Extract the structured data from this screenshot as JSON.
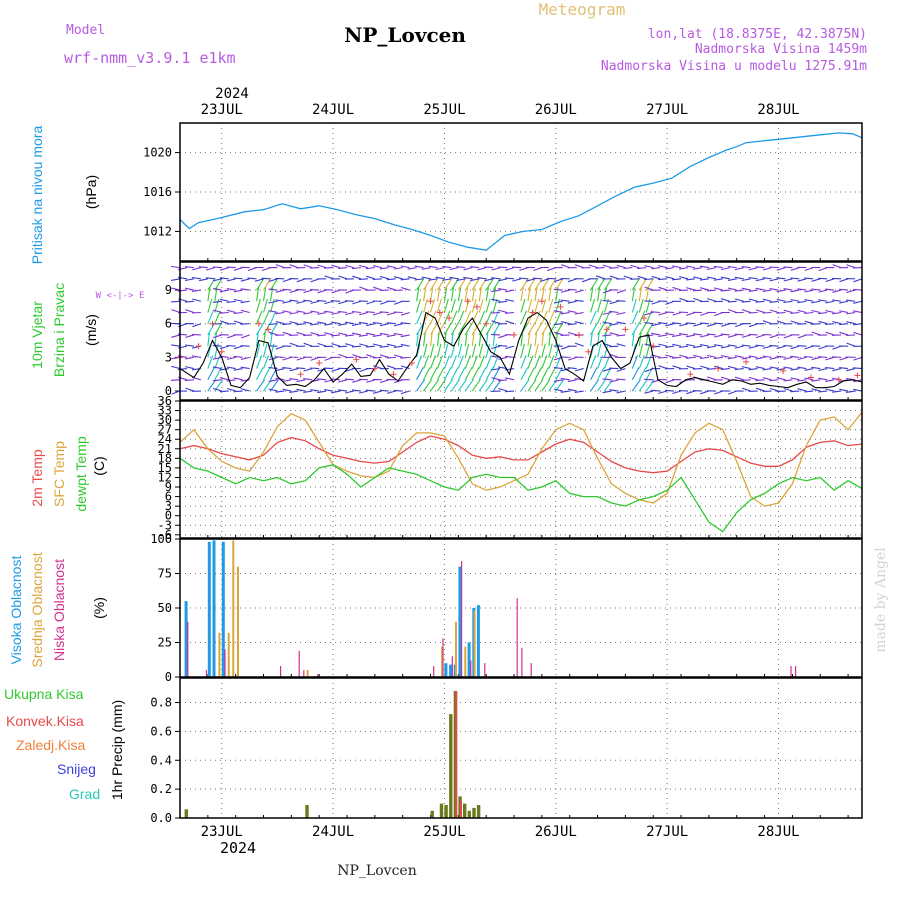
{
  "header": {
    "model_label": "Model",
    "model_name": "wrf-nmm_v3.9.1 e1km",
    "station": "NP_Lovcen",
    "meteogram_label": "Meteogram",
    "lonlat": "lon,lat (18.8375E, 42.3875N)",
    "elevation": "Nadmorska Visina 1459m",
    "model_elevation": "Nadmorska Visina u modelu 1275.91m",
    "watermark": "made by Angel",
    "footer_station": "NP_Lovcen"
  },
  "colors": {
    "pressure": "#1e9be6",
    "temp": "#e84848",
    "sfc_temp": "#dca53c",
    "dewpoint": "#2fc92f",
    "high_cloud": "#1e9be6",
    "mid_cloud": "#dca53c",
    "low_cloud": "#d0318f",
    "total_precip": "#2fc92f",
    "convective": "#e84848",
    "stratiform": "#f07f3a",
    "snow": "#4040dd",
    "graupel": "#2bc8b8",
    "header_purple": "#b65be0",
    "header_gold": "#e3bf75",
    "wind_speed_line": "#000000",
    "wind_gust_marker": "#e84848"
  },
  "time_axis": {
    "top_year": "2024",
    "bottom_year": "2024",
    "day_labels": [
      "23JUL",
      "24JUL",
      "25JUL",
      "26JUL",
      "27JUL",
      "28JUL"
    ],
    "start_hour": 0,
    "end_hour": 147
  },
  "panels": {
    "pressure": {
      "label_1": "Pritisak na nivou mora",
      "unit": "(hPa)"
    },
    "wind": {
      "label_1": "10m Vjetar",
      "label_2": "Brzina i Pravac",
      "unit": "(m/s)",
      "compass": "W <-|-> E"
    },
    "temp": {
      "label_1": "2m Temp",
      "label_2": "SFC Temp",
      "label_3": "dewpt Temp",
      "unit": "(C)"
    },
    "cloud": {
      "label_1": "Visoka Oblacnost",
      "label_2": "Srednja Oblacnost",
      "label_3": "Niska Oblacnost",
      "unit": "(%)"
    },
    "precip": {
      "unit": "1hr Precip (mm)",
      "legend": [
        "Ukupna Kisa",
        "Konvek.Kisa",
        "Zaledj.Kisa",
        "Snijeg",
        "Grad"
      ]
    }
  },
  "chart_data": [
    {
      "type": "line",
      "title": "Pritisak na nivou mora",
      "ylabel": "(hPa)",
      "ylim": [
        1009,
        1023
      ],
      "yticks": [
        1012,
        1016,
        1020
      ],
      "grid": true,
      "series": [
        {
          "name": "Pritisak na nivou mora",
          "x": [
            0,
            2,
            4,
            8,
            14,
            18,
            22,
            26,
            30,
            34,
            38,
            42,
            46,
            50,
            54,
            58,
            62,
            66,
            70,
            74,
            78,
            82,
            86,
            90,
            94,
            98,
            102,
            106,
            110,
            114,
            118,
            120,
            122,
            126,
            130,
            134,
            138,
            142,
            145,
            147
          ],
          "values": [
            1013.2,
            1012.3,
            1012.9,
            1013.3,
            1014.0,
            1014.2,
            1014.8,
            1014.3,
            1014.6,
            1014.2,
            1013.7,
            1013.3,
            1012.7,
            1012.2,
            1011.6,
            1010.9,
            1010.4,
            1010.1,
            1011.6,
            1012.0,
            1012.2,
            1013.0,
            1013.6,
            1014.6,
            1015.6,
            1016.5,
            1016.9,
            1017.4,
            1018.6,
            1019.5,
            1020.3,
            1020.6,
            1021.0,
            1021.2,
            1021.4,
            1021.6,
            1021.8,
            1022.0,
            1021.9,
            1021.5
          ]
        }
      ]
    },
    {
      "type": "line",
      "title": "10m Vjetar Brzina i Pravac",
      "ylabel": "(m/s)",
      "ylim": [
        -0.8,
        11.5
      ],
      "yticks": [
        0,
        3,
        6,
        9
      ],
      "grid": true,
      "series": [
        {
          "name": "Brzina",
          "x": [
            0,
            3,
            5,
            7,
            9,
            11,
            13,
            15,
            17,
            19,
            21,
            23,
            25,
            27,
            29,
            31,
            33,
            35,
            37,
            39,
            41,
            43,
            45,
            47,
            49,
            51,
            53,
            55,
            57,
            59,
            61,
            63,
            65,
            67,
            69,
            71,
            73,
            75,
            77,
            79,
            81,
            83,
            85,
            87,
            89,
            91,
            93,
            95,
            97,
            99,
            101,
            103,
            105,
            107,
            109,
            111,
            113,
            115,
            117,
            119,
            121,
            123,
            125,
            127,
            129,
            131,
            133,
            135,
            137,
            139,
            141,
            143,
            145,
            147
          ],
          "values": [
            2.0,
            1.2,
            2.5,
            4.5,
            3.0,
            0.5,
            0.3,
            1.2,
            4.5,
            4.3,
            1.3,
            0.5,
            0.6,
            0.4,
            1.0,
            2.0,
            0.8,
            1.5,
            2.4,
            1.3,
            1.4,
            2.8,
            1.5,
            0.9,
            2.1,
            3.2,
            7.0,
            6.5,
            4.5,
            4.0,
            5.5,
            6.5,
            5.0,
            3.5,
            3.0,
            1.5,
            4.5,
            6.5,
            7.0,
            6.3,
            4.5,
            2.0,
            1.5,
            0.9,
            4.0,
            4.5,
            3.0,
            2.0,
            2.5,
            4.8,
            5.0,
            1.0,
            0.5,
            0.4,
            1.0,
            1.2,
            1.0,
            0.8,
            0.6,
            1.0,
            0.9,
            0.6,
            0.7,
            0.5,
            0.4,
            0.3,
            0.6,
            0.8,
            0.3,
            0.3,
            0.4,
            0.9,
            1.0,
            0.8
          ]
        },
        {
          "name": "Udar",
          "x": [
            0,
            4,
            7,
            9,
            17,
            19,
            26,
            30,
            38,
            42,
            46,
            50,
            54,
            56,
            58,
            62,
            64,
            66,
            72,
            76,
            78,
            82,
            86,
            88,
            92,
            96,
            100,
            102,
            110,
            116,
            122,
            130,
            136,
            142,
            146
          ],
          "values": [
            3.0,
            4.0,
            6.0,
            3.5,
            6.0,
            5.5,
            1.5,
            2.5,
            2.8,
            2.0,
            1.5,
            2.5,
            8.0,
            7.0,
            6.5,
            8.0,
            7.5,
            6.0,
            5.0,
            7.0,
            8.0,
            7.5,
            5.0,
            3.5,
            5.5,
            5.5,
            6.5,
            4.0,
            1.5,
            2.0,
            2.6,
            1.8,
            1.2,
            1.0,
            1.4
          ]
        }
      ]
    },
    {
      "type": "line",
      "title": "2m Temp / SFC Temp / dewpt Temp",
      "ylabel": "(C)",
      "ylim": [
        -7,
        36
      ],
      "yticks": [
        -6,
        -3,
        0,
        3,
        6,
        9,
        12,
        15,
        18,
        21,
        24,
        27,
        30,
        33,
        36
      ],
      "grid": true,
      "series": [
        {
          "name": "2m Temp",
          "x": [
            0,
            3,
            6,
            9,
            12,
            15,
            18,
            21,
            24,
            27,
            30,
            33,
            36,
            39,
            42,
            45,
            48,
            51,
            54,
            57,
            60,
            63,
            66,
            69,
            72,
            75,
            78,
            81,
            84,
            87,
            90,
            93,
            96,
            99,
            102,
            105,
            108,
            111,
            114,
            117,
            120,
            123,
            126,
            129,
            132,
            135,
            138,
            141,
            144,
            147
          ],
          "values": [
            21.0,
            22.0,
            21.0,
            19.5,
            18.5,
            17.5,
            19.0,
            23.0,
            24.5,
            23.5,
            21.0,
            19.0,
            18.0,
            17.0,
            16.5,
            17.0,
            20.0,
            23.0,
            25.0,
            24.0,
            22.0,
            19.0,
            18.0,
            18.5,
            17.5,
            17.5,
            20.0,
            22.5,
            24.0,
            23.0,
            20.0,
            17.0,
            15.0,
            14.0,
            13.5,
            14.0,
            17.0,
            20.0,
            21.0,
            20.5,
            18.5,
            16.5,
            15.5,
            15.5,
            17.5,
            21.5,
            23.0,
            23.5,
            22.0,
            22.5
          ]
        },
        {
          "name": "SFC Temp",
          "x": [
            0,
            3,
            6,
            9,
            12,
            15,
            18,
            21,
            24,
            27,
            30,
            33,
            36,
            39,
            42,
            45,
            48,
            51,
            54,
            57,
            60,
            63,
            66,
            69,
            72,
            75,
            78,
            81,
            84,
            87,
            90,
            93,
            96,
            99,
            102,
            105,
            108,
            111,
            114,
            117,
            120,
            123,
            126,
            129,
            132,
            135,
            138,
            141,
            144,
            147
          ],
          "values": [
            23.0,
            27.0,
            21.0,
            17.0,
            15.0,
            14.0,
            20.0,
            28.0,
            32.0,
            30.0,
            23.0,
            16.0,
            14.0,
            12.5,
            12.0,
            14.0,
            22.0,
            26.0,
            26.0,
            25.0,
            18.0,
            10.0,
            8.0,
            9.0,
            11.0,
            13.0,
            21.0,
            27.0,
            29.0,
            27.0,
            18.0,
            10.0,
            7.0,
            5.0,
            4.0,
            7.0,
            19.0,
            26.0,
            29.0,
            27.0,
            17.0,
            6.0,
            3.0,
            4.0,
            10.0,
            22.0,
            30.0,
            31.0,
            27.0,
            32.5
          ]
        },
        {
          "name": "dewpt Temp",
          "x": [
            0,
            3,
            6,
            9,
            12,
            15,
            18,
            21,
            24,
            27,
            30,
            33,
            36,
            39,
            42,
            45,
            48,
            51,
            54,
            57,
            60,
            63,
            66,
            69,
            72,
            75,
            78,
            81,
            84,
            87,
            90,
            93,
            96,
            99,
            102,
            105,
            108,
            111,
            114,
            117,
            120,
            123,
            126,
            129,
            132,
            135,
            138,
            141,
            144,
            147
          ],
          "values": [
            18.0,
            15.0,
            14.0,
            12.0,
            10.0,
            12.0,
            11.0,
            12.0,
            10.0,
            11.0,
            15.0,
            16.0,
            13.0,
            9.0,
            12.0,
            15.0,
            14.0,
            13.0,
            11.0,
            9.0,
            8.0,
            12.0,
            13.0,
            12.0,
            12.0,
            8.0,
            9.0,
            11.0,
            7.0,
            6.0,
            6.0,
            4.0,
            3.0,
            5.0,
            6.0,
            8.0,
            12.0,
            5.0,
            -2.0,
            -5.0,
            1.0,
            5.0,
            7.0,
            10.0,
            12.0,
            11.0,
            12.0,
            8.0,
            11.0,
            8.5
          ]
        }
      ]
    },
    {
      "type": "bar",
      "title": "Visoka / Srednja / Niska Oblacnost",
      "ylabel": "(%)",
      "ylim": [
        0,
        100
      ],
      "yticks": [
        0,
        25,
        50,
        75,
        100
      ],
      "grid": true,
      "series": [
        {
          "name": "Visoka Oblacnost",
          "x": [
            1,
            6,
            7,
            9,
            57,
            58,
            59,
            60,
            62,
            63,
            64
          ],
          "values": [
            55,
            98,
            99,
            98,
            10,
            9,
            9,
            80,
            25,
            50,
            52
          ]
        },
        {
          "name": "Srednja Oblacnost",
          "x": [
            8,
            10,
            11,
            12,
            27,
            56,
            59,
            61,
            63
          ],
          "values": [
            32,
            32,
            99,
            80,
            5,
            22,
            40,
            22,
            48
          ]
        },
        {
          "name": "Niska Oblacnost",
          "x": [
            1,
            5,
            9,
            21,
            25,
            26,
            29,
            54,
            56,
            58,
            60,
            62,
            65,
            72,
            73,
            75,
            131,
            132
          ],
          "values": [
            40,
            5,
            20,
            8,
            19,
            5,
            2,
            8,
            28,
            15,
            84,
            12,
            10,
            57,
            21,
            10,
            8,
            8
          ]
        }
      ]
    },
    {
      "type": "bar",
      "title": "1hr Precip",
      "ylabel": "1hr Precip (mm)",
      "ylim": [
        0,
        0.97
      ],
      "yticks": [
        0,
        0.2,
        0.4,
        0.6,
        0.8
      ],
      "grid": true,
      "series": [
        {
          "name": "Ukupna Kisa",
          "x": [
            1,
            27,
            54,
            56,
            57,
            58,
            59,
            60,
            61,
            62,
            63,
            64
          ],
          "values": [
            0.06,
            0.09,
            0.05,
            0.1,
            0.09,
            0.72,
            0.88,
            0.15,
            0.1,
            0.05,
            0.07,
            0.09
          ]
        },
        {
          "name": "Konvek.Kisa",
          "x": [
            59,
            60
          ],
          "values": [
            0.88,
            0.12
          ]
        }
      ]
    }
  ]
}
